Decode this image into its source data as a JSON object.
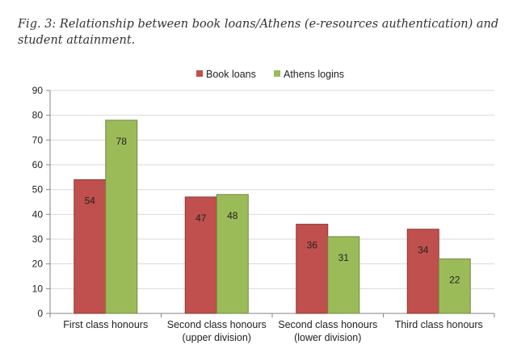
{
  "figure": {
    "caption": "Fig. 3: Relationship between book loans/Athens (e-resources authentication) and student attainment."
  },
  "chart_data": {
    "type": "bar",
    "categories": [
      [
        "First class honours"
      ],
      [
        "Second class honours",
        "(upper division)"
      ],
      [
        "Second class honours",
        "(lower division)"
      ],
      [
        "Third class honours"
      ]
    ],
    "series": [
      {
        "name": "Book loans",
        "values": [
          54,
          47,
          36,
          34
        ],
        "color": "#c0504d"
      },
      {
        "name": "Athens logins",
        "values": [
          78,
          48,
          31,
          22
        ],
        "color": "#9bbb59"
      }
    ],
    "ylim": [
      0,
      90
    ],
    "yticks": [
      0,
      10,
      20,
      30,
      40,
      50,
      60,
      70,
      80,
      90
    ],
    "grid": true,
    "legend_position": "top-center",
    "data_labels": true,
    "xlabel": "",
    "ylabel": ""
  }
}
